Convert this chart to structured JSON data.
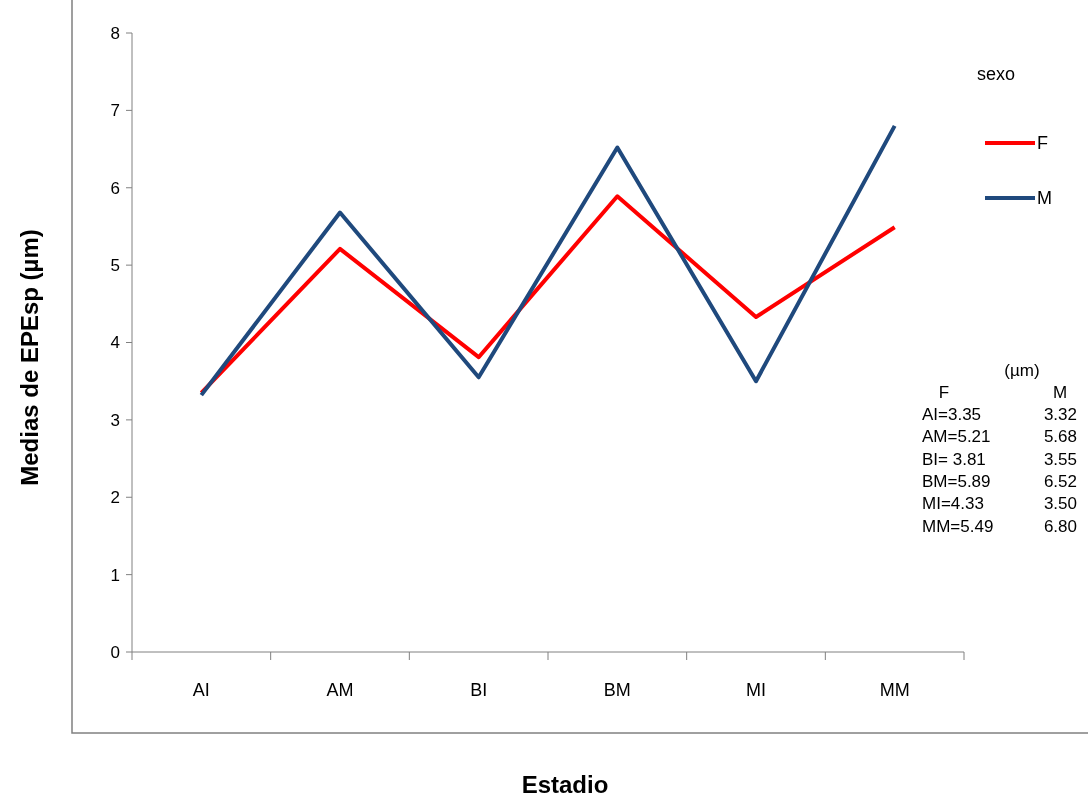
{
  "chart_data": {
    "type": "line",
    "xlabel": "Estadio",
    "ylabel": "Medias de EPEsp (µm)",
    "legend_title": "sexo",
    "legend": "right",
    "grid": false,
    "marker": "none",
    "line_style": "solid",
    "categories": [
      "AI",
      "AM",
      "BI",
      "BM",
      "MI",
      "MM"
    ],
    "ylim": [
      0,
      8
    ],
    "yticks": [
      0,
      1,
      2,
      3,
      4,
      5,
      6,
      7,
      8
    ],
    "series": [
      {
        "name": "F",
        "color": "#ff0000",
        "values": [
          3.35,
          5.21,
          3.81,
          5.89,
          4.33,
          5.49
        ]
      },
      {
        "name": "M",
        "color": "#1f497d",
        "values": [
          3.32,
          5.68,
          3.55,
          6.52,
          3.5,
          6.8
        ]
      }
    ],
    "annotations": [
      "(µm)",
      "F",
      "M",
      "AI=3.35",
      "3.32",
      "AM=5.21",
      "5.68",
      "BI= 3.81",
      "3.55",
      "BM=5.89",
      "6.52",
      "MI=4.33",
      "3.50",
      "MM=5.49",
      "6.80"
    ]
  }
}
